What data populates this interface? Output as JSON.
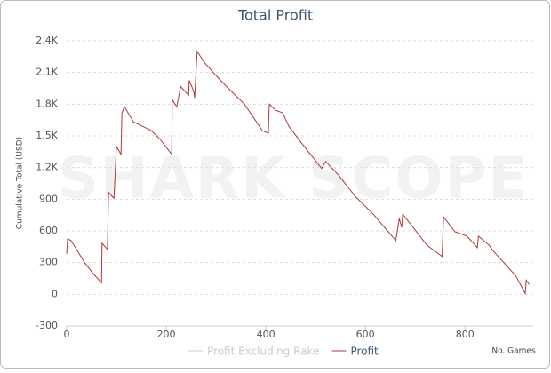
{
  "chart_data": {
    "type": "line",
    "title": "Total Profit",
    "watermark": "SHARK SCOPE",
    "y_label": "Cumulative Total (USD)",
    "x_label": "No. Games",
    "xlim": [
      0,
      937
    ],
    "xticks": [
      0,
      200,
      400,
      600,
      800
    ],
    "ylim": [
      -300,
      2400
    ],
    "yticks": [
      -300,
      0,
      300,
      600,
      900,
      {
        "value": 1200,
        "label": "1.2K"
      },
      {
        "value": 1500,
        "label": "1.5K"
      },
      {
        "value": 1800,
        "label": "1.8K"
      },
      {
        "value": 2100,
        "label": "2.1K"
      },
      {
        "value": 2400,
        "label": "2.4K"
      }
    ],
    "grid": true,
    "x": [
      0,
      2,
      9,
      36,
      54,
      70,
      71,
      82,
      84,
      95,
      100,
      109,
      111,
      116,
      134,
      152,
      170,
      188,
      211,
      212,
      221,
      229,
      245,
      246,
      255,
      257,
      262,
      277,
      304,
      330,
      357,
      375,
      393,
      405,
      407,
      420,
      434,
      446,
      473,
      512,
      520,
      545,
      580,
      616,
      661,
      668,
      673,
      675,
      696,
      723,
      754,
      757,
      780,
      804,
      825,
      827,
      848,
      857,
      902,
      921,
      923,
      929
    ],
    "series": [
      {
        "name": "Profit Excluding Rake",
        "color": "#cccccc",
        "hidden": true
      },
      {
        "name": "Profit",
        "color": "#aa3a3a",
        "values": [
          383,
          525,
          508,
          300,
          192,
          108,
          483,
          425,
          967,
          908,
          1400,
          1325,
          1717,
          1775,
          1633,
          1592,
          1550,
          1467,
          1325,
          1842,
          1775,
          1967,
          1883,
          2025,
          1925,
          1858,
          2300,
          2192,
          2050,
          1925,
          1800,
          1675,
          1550,
          1525,
          1800,
          1742,
          1717,
          1592,
          1425,
          1192,
          1258,
          1133,
          925,
          758,
          508,
          717,
          633,
          758,
          633,
          467,
          358,
          733,
          592,
          550,
          442,
          550,
          467,
          408,
          175,
          8,
          133,
          92
        ]
      }
    ]
  }
}
